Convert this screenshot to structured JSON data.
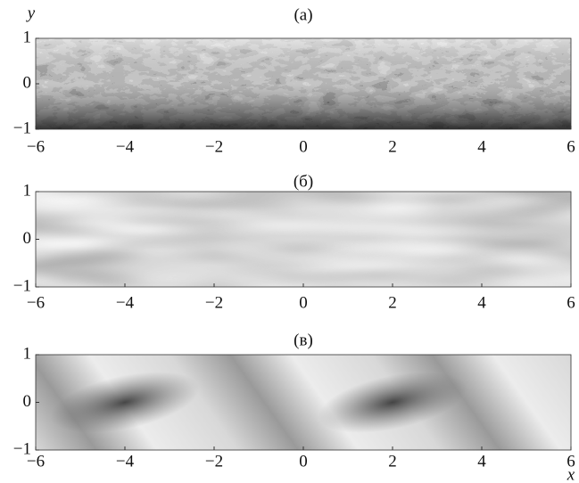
{
  "chart_data": [
    {
      "type": "contour",
      "title": "(а)",
      "ylabel": "y",
      "xlim": [
        -6,
        6
      ],
      "ylim": [
        -1,
        1
      ],
      "xticks": [
        {
          "value": -6,
          "label": "−6"
        },
        {
          "value": -4,
          "label": "−4"
        },
        {
          "value": -2,
          "label": "−2"
        },
        0,
        2,
        4,
        6
      ],
      "yticks": [
        {
          "value": -1,
          "label": "−1"
        },
        0,
        1
      ]
    },
    {
      "type": "contour",
      "title": "(б)",
      "xlim": [
        -6,
        6
      ],
      "ylim": [
        -1,
        1
      ],
      "xticks": [
        {
          "value": -6,
          "label": "−6"
        },
        {
          "value": -4,
          "label": "−4"
        },
        {
          "value": -2,
          "label": "−2"
        },
        0,
        2,
        4,
        6
      ],
      "yticks": [
        {
          "value": -1,
          "label": "−1"
        },
        0,
        1
      ]
    },
    {
      "type": "contour",
      "title": "(в)",
      "xlabel": "x",
      "xlim": [
        -6,
        6
      ],
      "ylim": [
        -1,
        1
      ],
      "xticks": [
        {
          "value": -6,
          "label": "−6"
        },
        {
          "value": -4,
          "label": "−4"
        },
        {
          "value": -2,
          "label": "−2"
        },
        0,
        2,
        4,
        6
      ],
      "yticks": [
        {
          "value": -1,
          "label": "−1"
        },
        0,
        1
      ]
    }
  ]
}
